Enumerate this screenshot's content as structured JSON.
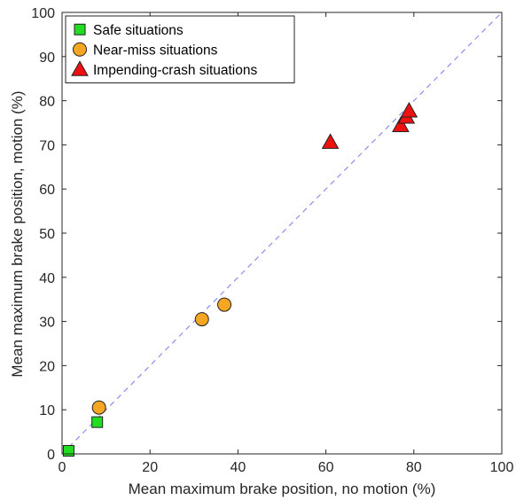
{
  "chart_data": {
    "type": "scatter",
    "title": "",
    "xlabel": "Mean maximum brake position, no motion (%)",
    "ylabel": "Mean maximum brake position, motion (%)",
    "xlim": [
      0,
      100
    ],
    "ylim": [
      0,
      100
    ],
    "xticks": [
      "0",
      "20",
      "40",
      "60",
      "80",
      "100"
    ],
    "yticks": [
      "0",
      "10",
      "20",
      "30",
      "40",
      "50",
      "60",
      "70",
      "80",
      "90",
      "100"
    ],
    "grid": false,
    "legend_position": "top-left",
    "reference_line": {
      "type": "identity",
      "style": "dashed",
      "color": "#8c8cf0"
    },
    "series": [
      {
        "name": "Safe situations",
        "marker": "square",
        "color": "#22dd22",
        "points": [
          [
            1.5,
            0.7
          ],
          [
            8.0,
            7.2
          ]
        ]
      },
      {
        "name": "Near-miss situations",
        "marker": "circle",
        "color": "#f5a623",
        "points": [
          [
            8.4,
            10.5
          ],
          [
            31.8,
            30.5
          ],
          [
            36.9,
            33.8
          ]
        ]
      },
      {
        "name": "Impending-crash situations",
        "marker": "triangle",
        "color": "#ee1111",
        "points": [
          [
            61.0,
            70.6
          ],
          [
            77.0,
            74.4
          ],
          [
            78.3,
            76.3
          ],
          [
            78.9,
            77.7
          ]
        ]
      }
    ]
  }
}
